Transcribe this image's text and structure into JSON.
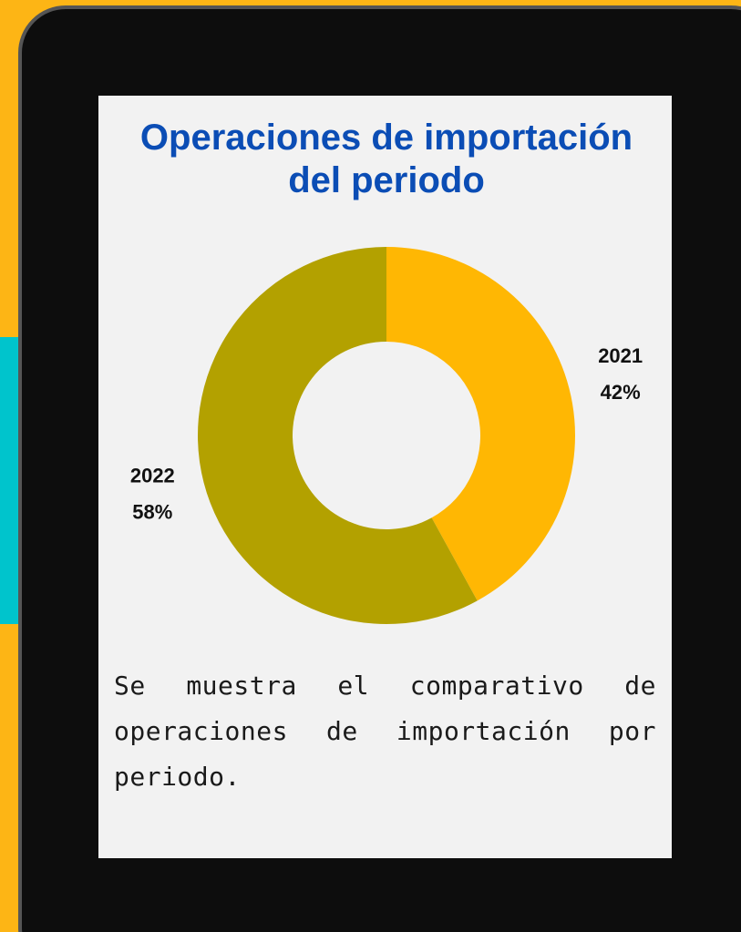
{
  "chart_data": {
    "type": "donut",
    "title": "Operaciones de importación del periodo",
    "categories": [
      "2021",
      "2022"
    ],
    "values": [
      42,
      58
    ],
    "value_labels": [
      "42%",
      "58%"
    ],
    "colors": [
      "#ffb703",
      "#b3a100"
    ],
    "description": "Se muestra el comparativo de operaciones de importación por periodo."
  }
}
